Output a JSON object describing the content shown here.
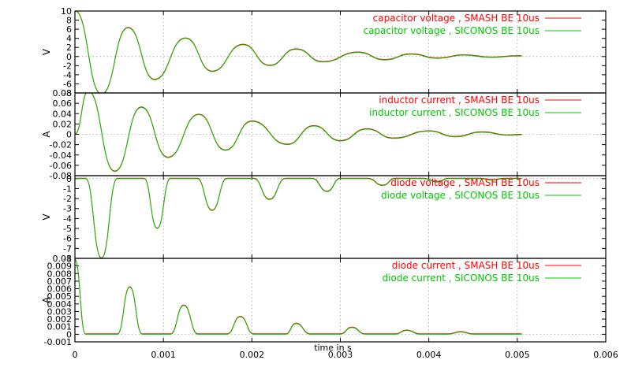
{
  "chart_data": {
    "type": "line",
    "xlabel": "time in s",
    "xlim": [
      0,
      0.006
    ],
    "xticks": [
      "0",
      "0.001",
      "0.002",
      "0.003",
      "0.004",
      "0.005",
      "0.006"
    ],
    "x_tick_values": [
      0,
      0.001,
      0.002,
      0.003,
      0.004,
      0.005,
      0.006
    ],
    "grid": true,
    "legend_placement": "top-right",
    "colors": {
      "smash": "#ff0000",
      "siconos": "#00c800",
      "grid": "#808080"
    },
    "panels": [
      {
        "id": "capacitor-voltage",
        "ylabel": "V",
        "ylim": [
          -8,
          10
        ],
        "yticks": [
          "-8",
          "-6",
          "-4",
          "-2",
          "0",
          "2",
          "4",
          "6",
          "8",
          "10"
        ],
        "y_tick_values": [
          -8,
          -6,
          -4,
          -2,
          0,
          2,
          4,
          6,
          8,
          10
        ],
        "series": [
          {
            "name": "capacitor voltage , SMASH   BE 10us",
            "color": "#ff0000"
          },
          {
            "name": "capacitor voltage , SICONOS BE 10us",
            "color": "#00c800"
          }
        ],
        "points": [
          [
            0,
            10
          ],
          [
            0.0003,
            -8.3
          ],
          [
            0.0006,
            6.3
          ],
          [
            0.0009,
            -5.1
          ],
          [
            0.00125,
            4.0
          ],
          [
            0.00155,
            -3.3
          ],
          [
            0.0019,
            2.6
          ],
          [
            0.0022,
            -2.0
          ],
          [
            0.0025,
            1.6
          ],
          [
            0.0028,
            -1.2
          ],
          [
            0.0032,
            0.9
          ],
          [
            0.0035,
            -0.75
          ],
          [
            0.0038,
            0.5
          ],
          [
            0.0041,
            -0.4
          ],
          [
            0.0044,
            0.3
          ],
          [
            0.0047,
            -0.2
          ],
          [
            0.005,
            0.1
          ],
          [
            0.00505,
            0.1
          ]
        ]
      },
      {
        "id": "inductor-current",
        "ylabel": "A",
        "ylim": [
          -0.08,
          0.08
        ],
        "yticks": [
          "-0.08",
          "-0.06",
          "-0.04",
          "-0.02",
          "0",
          "0.02",
          "0.04",
          "0.06",
          "0.08"
        ],
        "y_tick_values": [
          -0.08,
          -0.06,
          -0.04,
          -0.02,
          0,
          0.02,
          0.04,
          0.06,
          0.08
        ],
        "series": [
          {
            "name": "inductor current , SMASH   BE 10us",
            "color": "#ff0000"
          },
          {
            "name": "inductor current , SICONOS BE 10us",
            "color": "#00c800"
          }
        ],
        "points": [
          [
            0,
            0
          ],
          [
            0.00015,
            0.083
          ],
          [
            0.00045,
            -0.072
          ],
          [
            0.00075,
            0.052
          ],
          [
            0.00105,
            -0.045
          ],
          [
            0.0014,
            0.038
          ],
          [
            0.0017,
            -0.031
          ],
          [
            0.002,
            0.025
          ],
          [
            0.0024,
            -0.02
          ],
          [
            0.0027,
            0.016
          ],
          [
            0.003,
            -0.013
          ],
          [
            0.0033,
            0.01
          ],
          [
            0.0036,
            -0.008
          ],
          [
            0.004,
            0.006
          ],
          [
            0.0043,
            -0.005
          ],
          [
            0.0046,
            0.004
          ],
          [
            0.0049,
            -0.002
          ],
          [
            0.00505,
            -0.001
          ]
        ]
      },
      {
        "id": "diode-voltage",
        "ylabel": "V",
        "ylim": [
          -8,
          0.3
        ],
        "yticks": [
          "-8",
          "-7",
          "-6",
          "-5",
          "-4",
          "-3",
          "-2",
          "-1",
          "0"
        ],
        "y_tick_values": [
          -8,
          -7,
          -6,
          -5,
          -4,
          -3,
          -2,
          -1,
          0
        ],
        "series": [
          {
            "name": "diode voltage , SMASH   BE 10us",
            "color": "#ff0000"
          },
          {
            "name": "diode voltage , SICONOS BE 10us",
            "color": "#00c800"
          }
        ],
        "points": [
          [
            0,
            0
          ],
          [
            0.00012,
            0
          ],
          [
            0.0003,
            -8.0
          ],
          [
            0.00048,
            0
          ],
          [
            0.00078,
            0
          ],
          [
            0.00093,
            -5.0
          ],
          [
            0.00108,
            0
          ],
          [
            0.00138,
            0
          ],
          [
            0.00155,
            -3.2
          ],
          [
            0.00172,
            0
          ],
          [
            0.00202,
            0
          ],
          [
            0.0022,
            -2.1
          ],
          [
            0.00238,
            0
          ],
          [
            0.00268,
            0
          ],
          [
            0.00285,
            -1.3
          ],
          [
            0.003,
            0
          ],
          [
            0.00331,
            0
          ],
          [
            0.00348,
            -0.7
          ],
          [
            0.00362,
            0
          ],
          [
            0.00394,
            0
          ],
          [
            0.0041,
            -0.35
          ],
          [
            0.00422,
            0
          ],
          [
            0.00458,
            0
          ],
          [
            0.00472,
            -0.15
          ],
          [
            0.00485,
            0
          ],
          [
            0.00505,
            0
          ]
        ]
      },
      {
        "id": "diode-current",
        "ylabel": "A",
        "ylim": [
          -0.001,
          0.01
        ],
        "yticks": [
          "-0.001",
          "0",
          "0.001",
          "0.002",
          "0.003",
          "0.004",
          "0.005",
          "0.006",
          "0.007",
          "0.008",
          "0.009",
          "0.01"
        ],
        "y_tick_values": [
          -0.001,
          0,
          0.001,
          0.002,
          0.003,
          0.004,
          0.005,
          0.006,
          0.007,
          0.008,
          0.009,
          0.01
        ],
        "series": [
          {
            "name": "diode current , SMASH   BE 10us",
            "color": "#ff0000"
          },
          {
            "name": "diode current , SICONOS BE 10us",
            "color": "#00c800"
          }
        ],
        "points": [
          [
            0,
            0.0098
          ],
          [
            0.00012,
            0
          ],
          [
            0.00048,
            0
          ],
          [
            0.00062,
            0.0062
          ],
          [
            0.00076,
            0
          ],
          [
            0.00108,
            0
          ],
          [
            0.00123,
            0.0038
          ],
          [
            0.00139,
            0
          ],
          [
            0.00172,
            0
          ],
          [
            0.00187,
            0.0023
          ],
          [
            0.00202,
            0
          ],
          [
            0.00238,
            0
          ],
          [
            0.0025,
            0.0014
          ],
          [
            0.00266,
            0
          ],
          [
            0.003,
            0
          ],
          [
            0.00313,
            0.0009
          ],
          [
            0.00328,
            0
          ],
          [
            0.00362,
            0
          ],
          [
            0.00375,
            0.0005
          ],
          [
            0.0039,
            0
          ],
          [
            0.00422,
            0
          ],
          [
            0.00436,
            0.0003
          ],
          [
            0.0045,
            0
          ],
          [
            0.00505,
            0
          ]
        ]
      }
    ]
  }
}
